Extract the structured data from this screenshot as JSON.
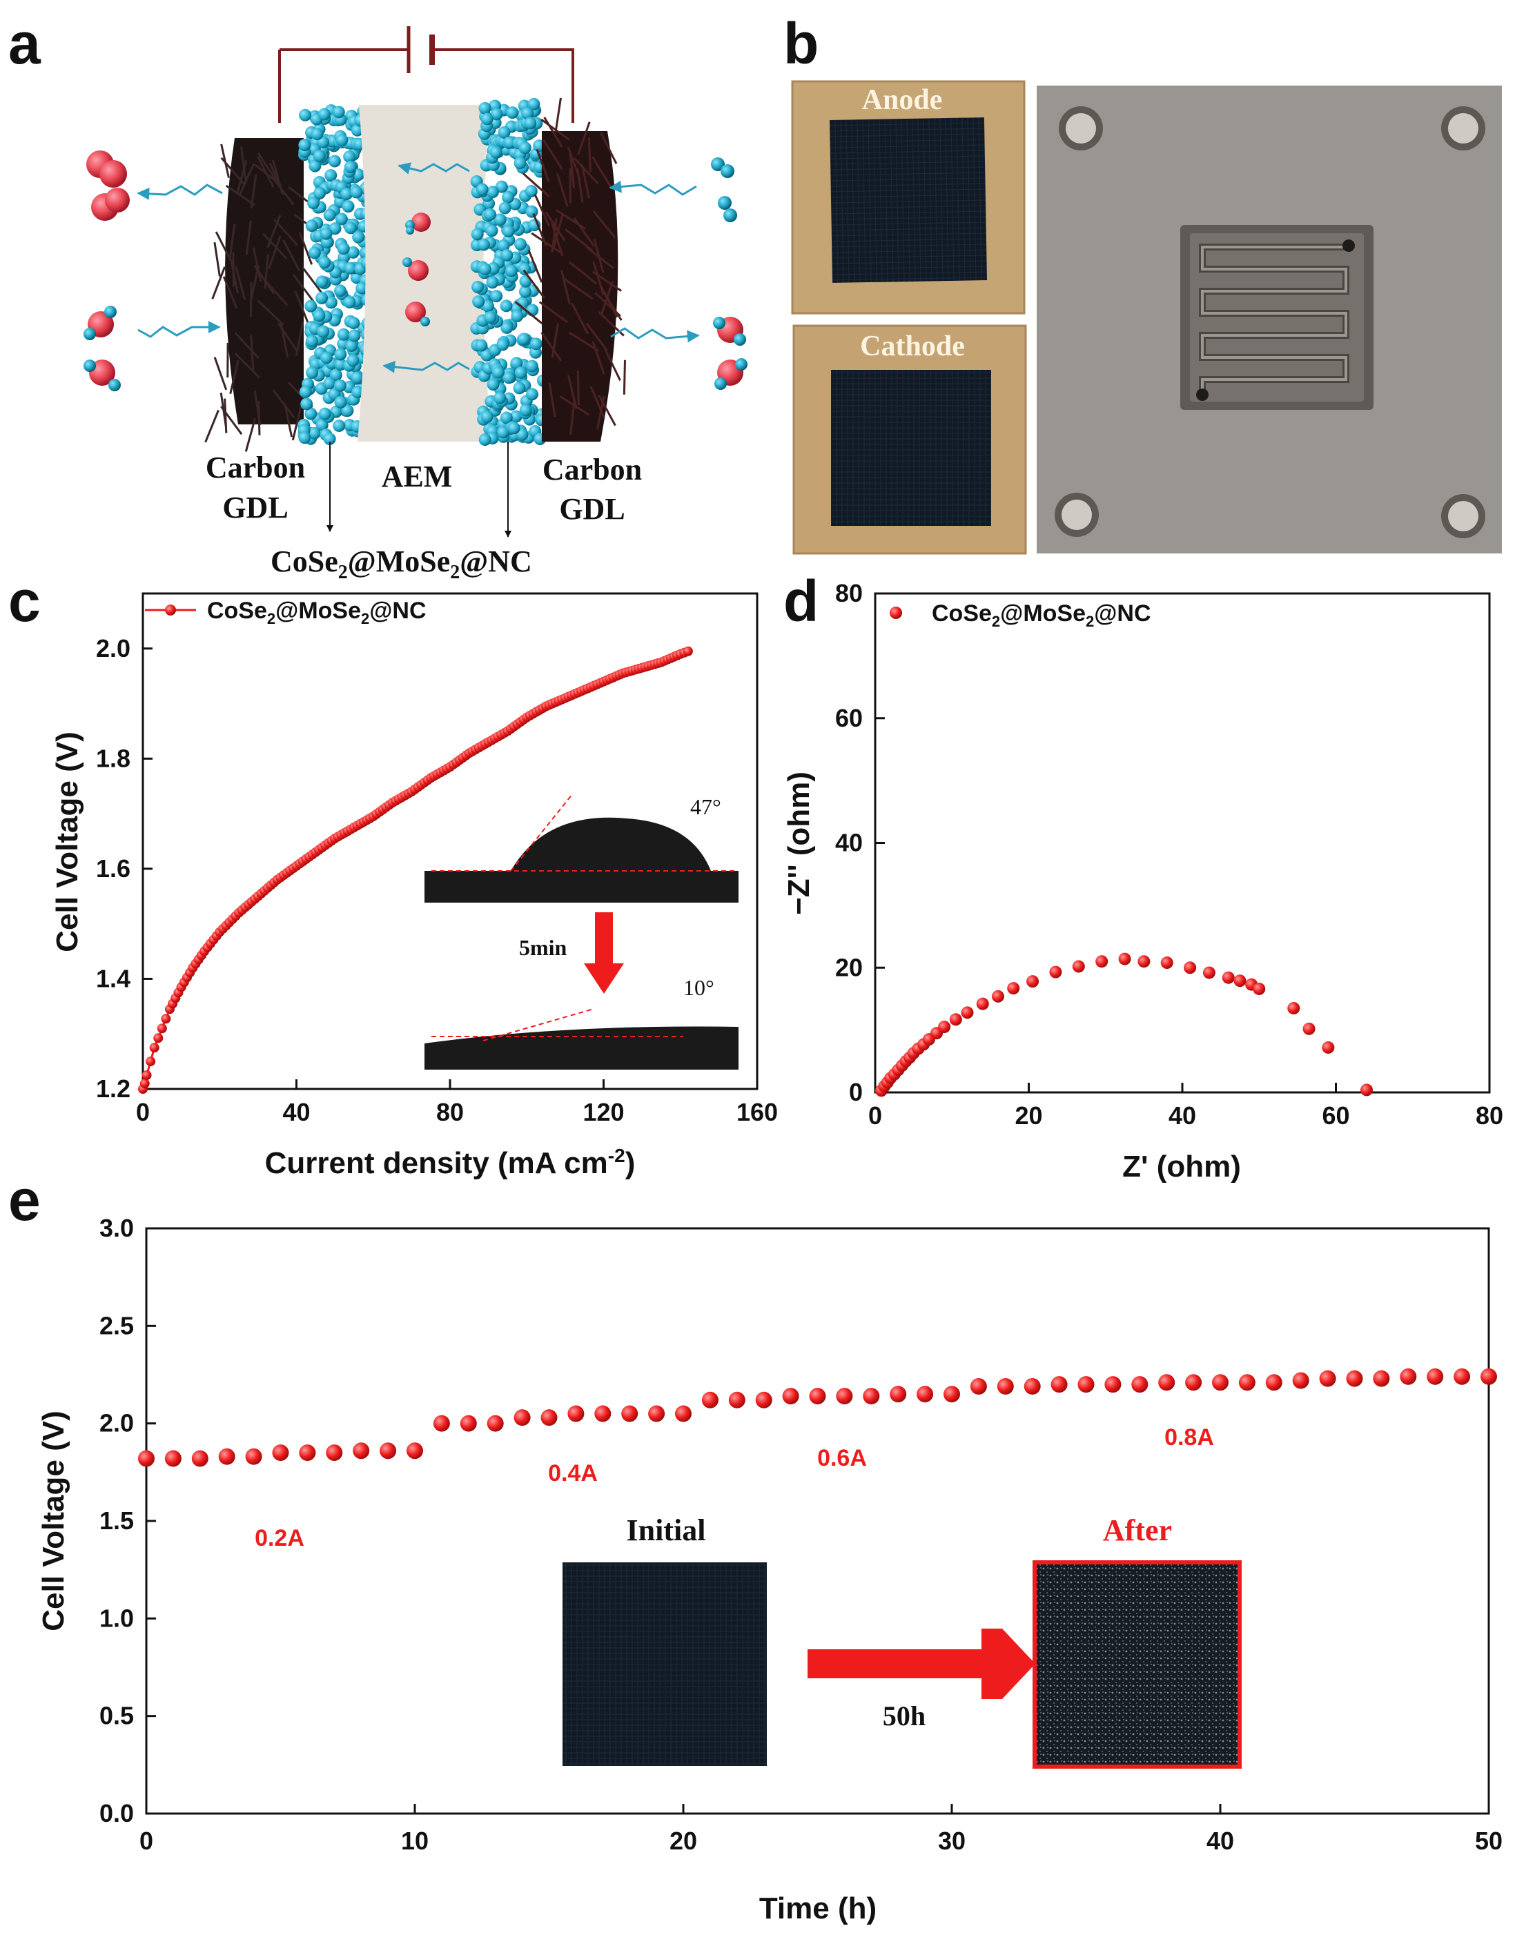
{
  "panel_labels": {
    "a": "a",
    "b": "b",
    "c": "c",
    "d": "d",
    "e": "e"
  },
  "colors": {
    "marker": "#ee1c1c",
    "membrane": "#e8e4dc",
    "catalyst": "#2ab0cf",
    "gdl": "#2a1a1a",
    "photo_bg": "#c9a877"
  },
  "panel_a": {
    "labels": {
      "carbon_left": "Carbon",
      "gdl_left": "GDL",
      "aem": "AEM",
      "carbon_right": "Carbon",
      "gdl_right": "GDL",
      "catalyst_pre": "CoSe",
      "catalyst_sub1": "2",
      "catalyst_mid": "@MoSe",
      "catalyst_sub2": "2",
      "catalyst_post": "@NC"
    }
  },
  "panel_b": {
    "labels": {
      "anode": "Anode",
      "cathode": "Cathode"
    }
  },
  "chart_data": [
    {
      "id": "c",
      "type": "line",
      "xlabel_pre": "Current density (mA cm",
      "xlabel_sup": "-2",
      "xlabel_post": ")",
      "ylabel": "Cell Voltage (V)",
      "xlim": [
        0,
        160
      ],
      "ylim": [
        1.2,
        2.1
      ],
      "xticks": [
        "0",
        "40",
        "80",
        "120",
        "160"
      ],
      "yticks": [
        "1.2",
        "1.4",
        "1.6",
        "1.8",
        "2.0"
      ],
      "legend": {
        "pre": "CoSe",
        "sub1": "2",
        "mid": "@MoSe",
        "sub2": "2",
        "post": "@NC"
      },
      "series": [
        {
          "name": "CoSe2@MoSe2@NC",
          "x": [
            0,
            0.5,
            1,
            2,
            3,
            5,
            7,
            10,
            13,
            16,
            20,
            25,
            30,
            35,
            40,
            45,
            50,
            55,
            60,
            65,
            70,
            75,
            80,
            85,
            90,
            95,
            100,
            105,
            110,
            115,
            120,
            125,
            130,
            135,
            140,
            142
          ],
          "y": [
            1.2,
            1.21,
            1.225,
            1.25,
            1.275,
            1.31,
            1.345,
            1.385,
            1.42,
            1.45,
            1.485,
            1.52,
            1.55,
            1.58,
            1.605,
            1.63,
            1.655,
            1.675,
            1.695,
            1.72,
            1.74,
            1.765,
            1.785,
            1.81,
            1.83,
            1.85,
            1.875,
            1.895,
            1.91,
            1.925,
            1.94,
            1.955,
            1.965,
            1.975,
            1.99,
            1.995
          ]
        }
      ],
      "inset": {
        "angle_before": "47°",
        "time": "5min",
        "angle_after": "10°"
      }
    },
    {
      "id": "d",
      "type": "scatter",
      "xlabel": "Z' (ohm)",
      "ylabel": "−Z'' (ohm)",
      "xlim": [
        0,
        80
      ],
      "ylim": [
        0,
        80
      ],
      "xticks": [
        "0",
        "20",
        "40",
        "60",
        "80"
      ],
      "yticks": [
        "0",
        "20",
        "40",
        "60",
        "80"
      ],
      "legend": {
        "pre": "CoSe",
        "sub1": "2",
        "mid": "@MoSe",
        "sub2": "2",
        "post": "@NC"
      },
      "series": [
        {
          "name": "CoSe2@MoSe2@NC",
          "x": [
            0.8,
            1.2,
            1.6,
            2.0,
            2.5,
            3.0,
            3.5,
            4.0,
            4.5,
            5.0,
            5.6,
            6.3,
            7.0,
            8.0,
            9.0,
            10.5,
            12.0,
            14.0,
            16.0,
            18.0,
            20.5,
            23.5,
            26.5,
            29.5,
            32.5,
            35.0,
            38.0,
            41.0,
            43.5,
            46.0,
            47.5,
            49.0,
            50.0,
            54.5,
            56.5,
            59.0,
            64.0
          ],
          "y": [
            0.3,
            1.0,
            1.6,
            2.3,
            2.9,
            3.6,
            4.3,
            5.0,
            5.6,
            6.3,
            7.0,
            7.7,
            8.5,
            9.5,
            10.5,
            11.7,
            12.8,
            14.2,
            15.4,
            16.7,
            17.8,
            19.3,
            20.2,
            21.0,
            21.4,
            21.0,
            20.8,
            20.0,
            19.2,
            18.4,
            17.9,
            17.3,
            16.6,
            13.5,
            10.2,
            7.2,
            0.4
          ]
        }
      ]
    },
    {
      "id": "e",
      "type": "scatter",
      "xlabel": "Time (h)",
      "ylabel": "Cell Voltage (V)",
      "xlim": [
        0,
        50
      ],
      "ylim": [
        0,
        3.0
      ],
      "xticks": [
        "0",
        "10",
        "20",
        "30",
        "40",
        "50"
      ],
      "yticks": [
        "0.0",
        "0.5",
        "1.0",
        "1.5",
        "2.0",
        "2.5",
        "3.0"
      ],
      "annotations": [
        "0.2A",
        "0.4A",
        "0.6A",
        "0.8A"
      ],
      "inset": {
        "initial": "Initial",
        "after": "After",
        "duration": "50h"
      },
      "series": [
        {
          "name": "CoSe2@MoSe2@NC",
          "x": [
            0,
            1,
            2,
            3,
            4,
            5,
            6,
            7,
            8,
            9,
            10,
            11,
            12,
            13,
            14,
            15,
            16,
            17,
            18,
            19,
            20,
            21,
            22,
            23,
            24,
            25,
            26,
            27,
            28,
            29,
            30,
            31,
            32,
            33,
            34,
            35,
            36,
            37,
            38,
            39,
            40,
            41,
            42,
            43,
            44,
            45,
            46,
            47,
            48,
            49,
            50
          ],
          "y": [
            1.82,
            1.82,
            1.82,
            1.83,
            1.83,
            1.85,
            1.85,
            1.85,
            1.86,
            1.86,
            1.86,
            2.0,
            2.0,
            2.0,
            2.03,
            2.03,
            2.05,
            2.05,
            2.05,
            2.05,
            2.05,
            2.12,
            2.12,
            2.12,
            2.14,
            2.14,
            2.14,
            2.14,
            2.15,
            2.15,
            2.15,
            2.19,
            2.19,
            2.19,
            2.2,
            2.2,
            2.2,
            2.2,
            2.21,
            2.21,
            2.21,
            2.21,
            2.21,
            2.22,
            2.23,
            2.23,
            2.23,
            2.24,
            2.24,
            2.24,
            2.24
          ]
        }
      ]
    }
  ]
}
